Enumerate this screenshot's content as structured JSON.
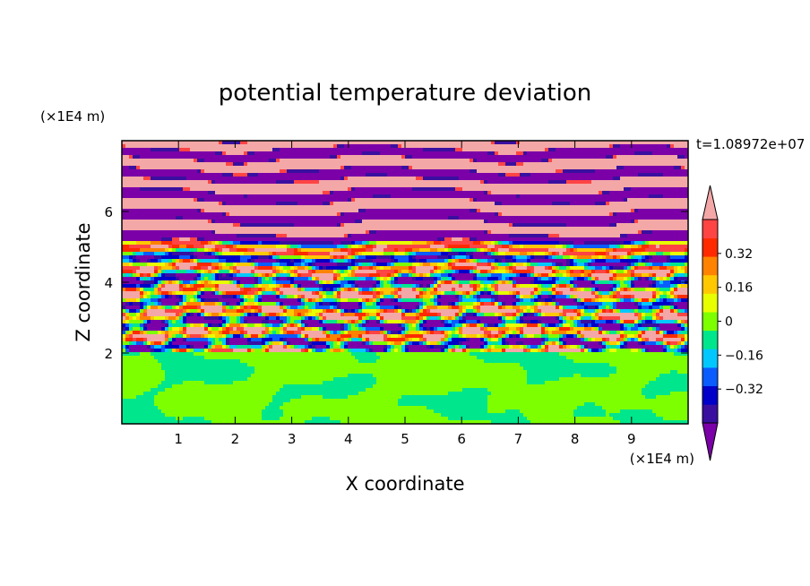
{
  "chart_data": {
    "type": "heatmap",
    "title": "potential temperature deviation",
    "xlabel": "X coordinate",
    "ylabel": "Z coordinate",
    "x_unit": "(×1E4 m)",
    "y_unit": "(×1E4 m)",
    "time_label": "t=1.08972e+07",
    "xlim": [
      0,
      10
    ],
    "ylim": [
      0,
      8
    ],
    "x_ticks": [
      "1",
      "2",
      "3",
      "4",
      "5",
      "6",
      "7",
      "8",
      "9"
    ],
    "y_ticks": [
      "2",
      "4",
      "6"
    ],
    "colorbar": {
      "levels": [
        -0.48,
        -0.4,
        -0.32,
        -0.24,
        -0.16,
        -0.08,
        0,
        0.08,
        0.16,
        0.24,
        0.32,
        0.4,
        0.48
      ],
      "labels": [
        "0.32",
        "0.16",
        "0",
        "-0.16",
        "-0.32"
      ],
      "colors_low_to_high": [
        "#7b00a8",
        "#3a0fa0",
        "#0000c8",
        "#0a5cff",
        "#00c8ff",
        "#00e68c",
        "#7dff00",
        "#e8ff00",
        "#ffc800",
        "#ff8200",
        "#ff2a00",
        "#ff4444",
        "#f4a7a7"
      ],
      "extend": "both"
    },
    "regions": [
      {
        "z_range": [
          0,
          2
        ],
        "description_values": [
          0,
          0.08
        ]
      },
      {
        "z_range": [
          2,
          5
        ],
        "description_values": [
          -0.48,
          0.48
        ]
      },
      {
        "z_range": [
          5,
          8
        ],
        "description_values": [
          -0.48,
          0.48
        ]
      }
    ]
  }
}
